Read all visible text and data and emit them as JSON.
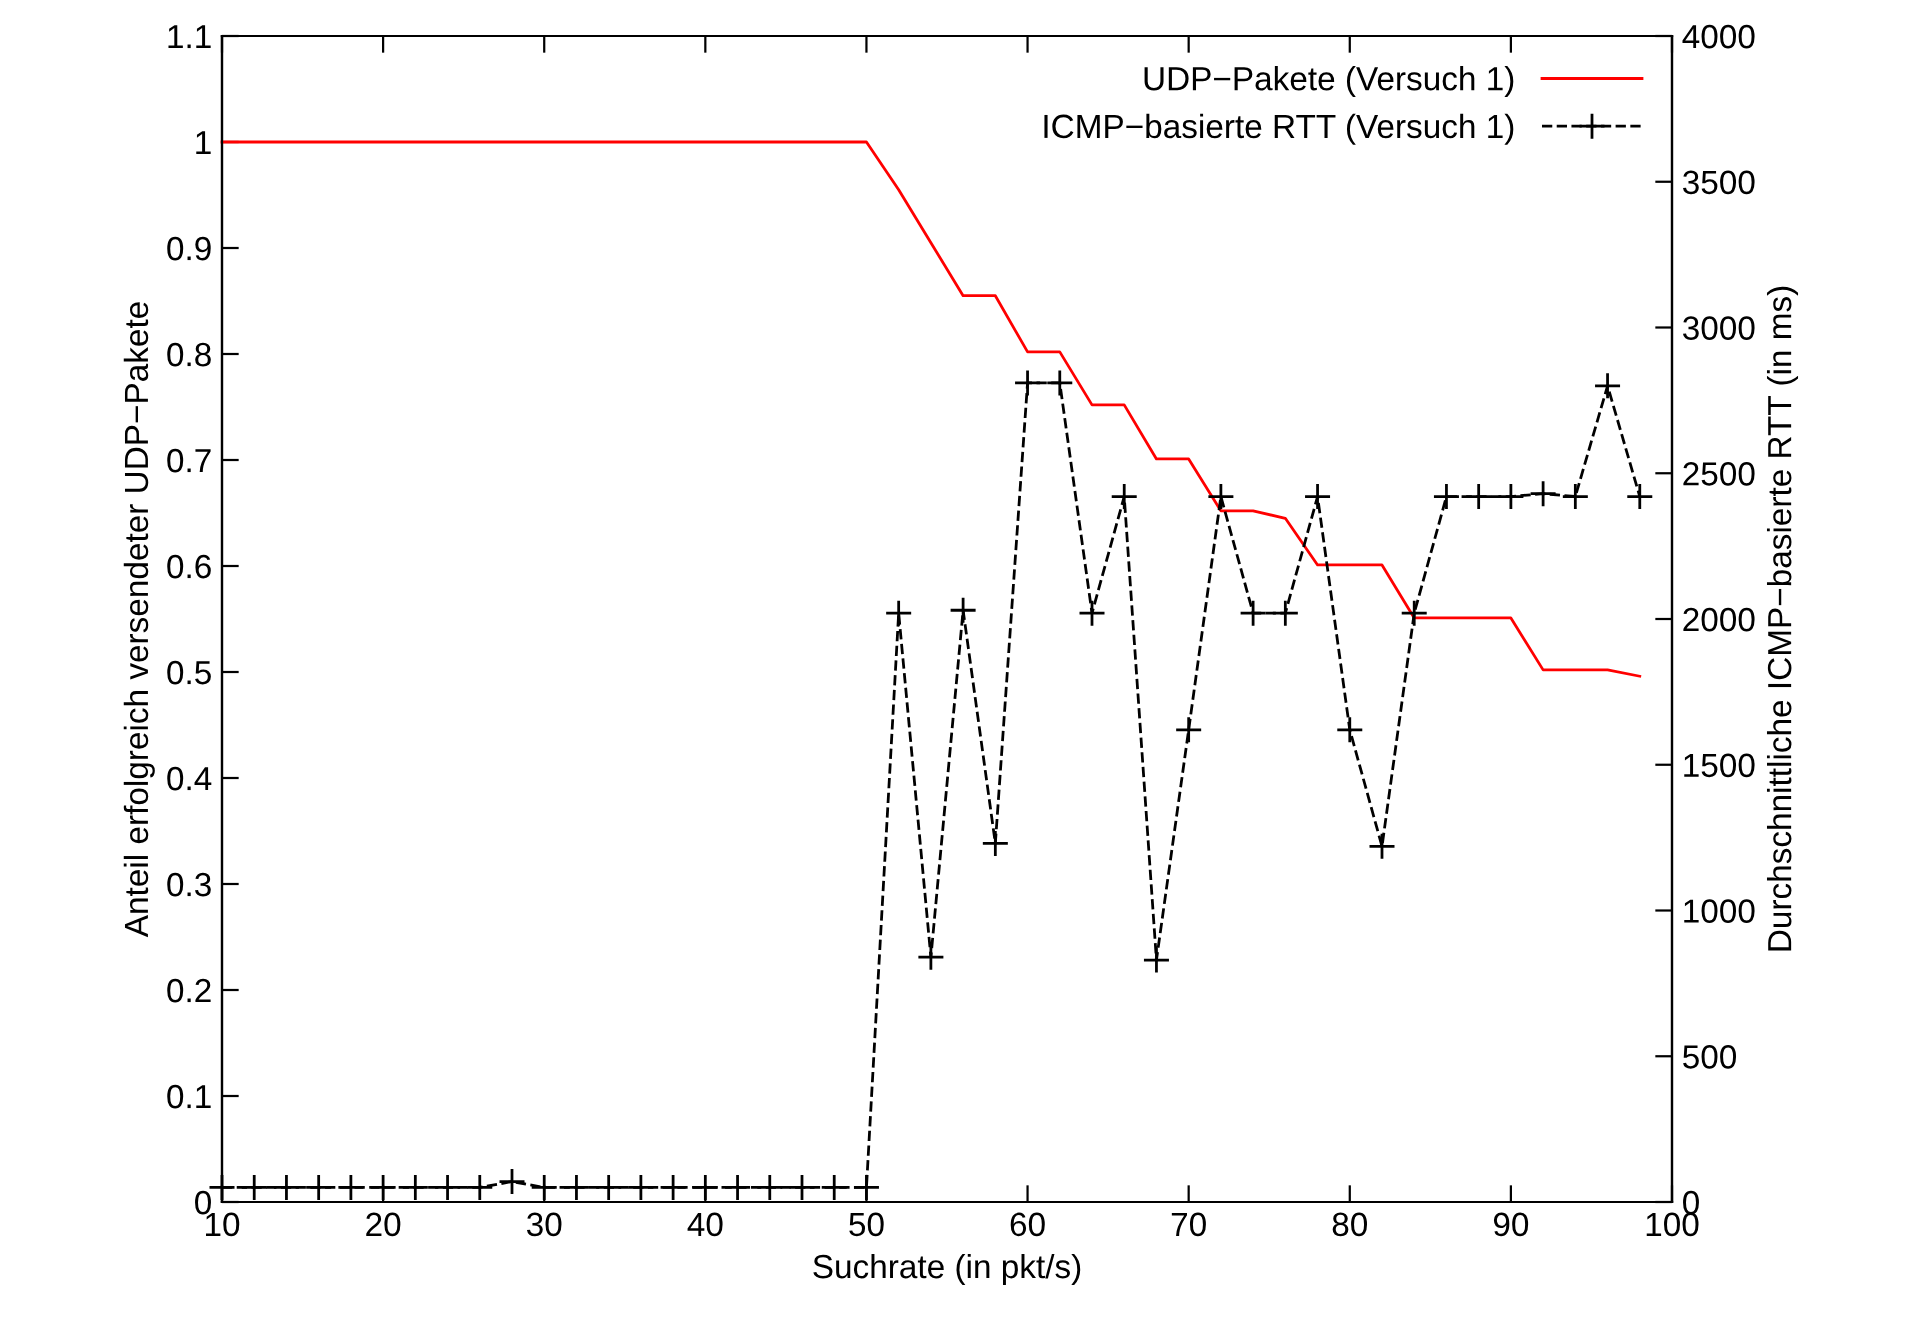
{
  "chart_data": {
    "type": "line",
    "xlabel": "Suchrate (in pkt/s)",
    "ylabel": "Anteil erfolgreich versendeter UDP−Pakete",
    "y2label": "Durchschnittliche ICMP−basierte RTT (in ms)",
    "x": [
      10,
      12,
      14,
      16,
      18,
      20,
      22,
      24,
      26,
      28,
      30,
      32,
      34,
      36,
      38,
      40,
      42,
      44,
      46,
      48,
      50,
      52,
      54,
      56,
      58,
      60,
      62,
      64,
      66,
      68,
      70,
      72,
      74,
      76,
      78,
      80,
      82,
      84,
      86,
      88,
      90,
      92,
      94,
      96,
      98
    ],
    "series": [
      {
        "name": "UDP−Pakete (Versuch 1)",
        "color": "#ff0000",
        "marker": "none",
        "line_style": "solid",
        "values": [
          1,
          1,
          1,
          1,
          1,
          1,
          1,
          1,
          1,
          1,
          1,
          1,
          1,
          1,
          1,
          1,
          1,
          1,
          1,
          1,
          1,
          0.955,
          0.905,
          0.855,
          0.855,
          0.802,
          0.802,
          0.752,
          0.752,
          0.701,
          0.701,
          0.652,
          0.652,
          0.645,
          0.601,
          0.601,
          0.601,
          0.551,
          0.551,
          0.551,
          0.551,
          0.502,
          0.502,
          0.502,
          0.496
        ]
      },
      {
        "name": "ICMP−basierte RTT (Versuch 1)",
        "color": "#000000",
        "axis": "y2",
        "marker": "cross",
        "line_style": "dashed",
        "values": [
          50,
          50,
          50,
          50,
          50,
          50,
          50,
          50,
          50,
          70,
          50,
          50,
          50,
          50,
          50,
          50,
          50,
          50,
          50,
          50,
          50,
          2020,
          840,
          2030,
          1230,
          2810,
          2810,
          2020,
          2420,
          830,
          1620,
          2420,
          2020,
          2020,
          2420,
          1620,
          1220,
          2020,
          2420,
          2420,
          2420,
          2430,
          2420,
          2800,
          2420
        ]
      }
    ],
    "xlim": [
      10,
      100
    ],
    "xticks": [
      10,
      20,
      30,
      40,
      50,
      60,
      70,
      80,
      90,
      100
    ],
    "ylim": [
      0,
      1.1
    ],
    "yticks": [
      0,
      0.1,
      0.2,
      0.3,
      0.4,
      0.5,
      0.6,
      0.7,
      0.8,
      0.9,
      1,
      1.1
    ],
    "y2lim": [
      0,
      4000
    ],
    "y2ticks": [
      0,
      500,
      1000,
      1500,
      2000,
      2500,
      3000,
      3500,
      4000
    ],
    "grid": false,
    "legend": "top right"
  }
}
